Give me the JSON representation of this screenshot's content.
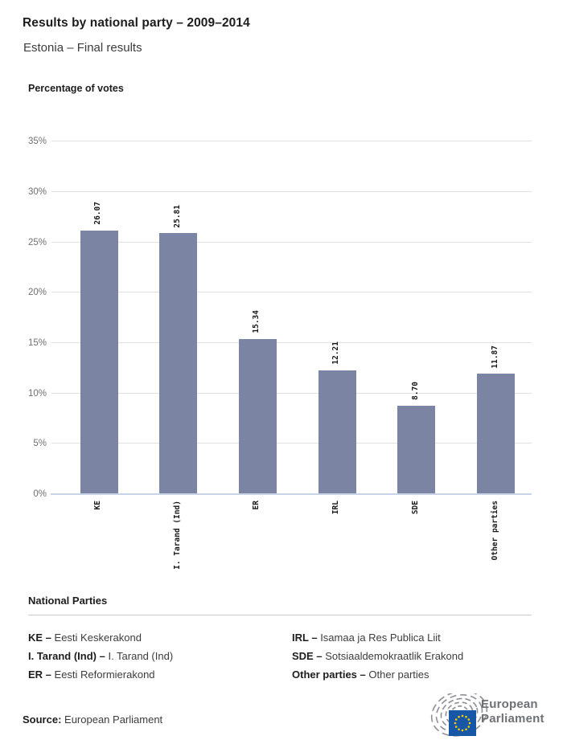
{
  "header": {
    "title": "Results by national party – 2009–2014",
    "subtitle": "Estonia – Final results"
  },
  "chart_data": {
    "type": "bar",
    "title": "Percentage of votes",
    "categories": [
      "KE",
      "I. Tarand (Ind)",
      "ER",
      "IRL",
      "SDE",
      "Other parties"
    ],
    "values": [
      26.07,
      25.81,
      15.34,
      12.21,
      8.7,
      11.87
    ],
    "value_labels": [
      "26.07",
      "25.81",
      "15.34",
      "12.21",
      "8.70",
      "11.87"
    ],
    "xlabel": "",
    "ylabel": "Percentage of votes",
    "ylim": [
      0,
      35
    ],
    "ytick_step": 5,
    "yticks": [
      "0%",
      "5%",
      "10%",
      "15%",
      "20%",
      "25%",
      "30%",
      "35%"
    ],
    "grid": true,
    "legend_position": "none",
    "bar_color": "#7b85a3",
    "gridline_color": "#e0e0e0",
    "axisline_color": "#c9d3e8"
  },
  "legend": {
    "heading": "National Parties",
    "entries": [
      {
        "abbr": "KE –",
        "name": "Eesti Keskerakond"
      },
      {
        "abbr": "I. Tarand (Ind) –",
        "name": "I. Tarand (Ind)"
      },
      {
        "abbr": "ER –",
        "name": "Eesti Reformierakond"
      },
      {
        "abbr": "IRL –",
        "name": "Isamaa ja Res Publica Liit"
      },
      {
        "abbr": "SDE –",
        "name": "Sotsiaaldemokraatlik Erakond"
      },
      {
        "abbr": "Other parties –",
        "name": "Other parties"
      }
    ]
  },
  "footer": {
    "source_label": "Source:",
    "source_value": "European Parliament",
    "logo_line1": "European",
    "logo_line2": "Parliament",
    "logo_colors": {
      "flag_blue": "#1757a5",
      "star_yellow": "#ffcc00",
      "arc_gray": "#8d9196",
      "text_gray": "#6d7175"
    }
  }
}
